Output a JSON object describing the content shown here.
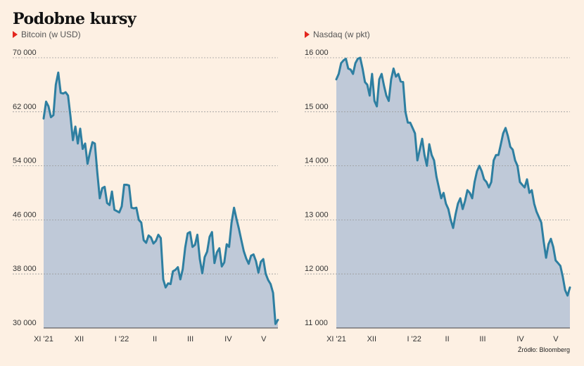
{
  "page": {
    "title": "Podobne kursy",
    "source": "Źródło: Bloomberg"
  },
  "colors": {
    "background": "#fdf0e3",
    "line": "#2e7fa1",
    "fill": "#bfc9d8",
    "marker": "#e3261e",
    "grid": "#9a9a9a"
  },
  "chart_data": [
    {
      "type": "area",
      "title": "Bitcoin (w USD)",
      "ylim": [
        30000,
        70000
      ],
      "yticks": [
        "70 000",
        "62 000",
        "54 000",
        "46 000",
        "38 000",
        "30 000"
      ],
      "ytick_values": [
        70000,
        62000,
        54000,
        46000,
        38000,
        30000
      ],
      "xticks": [
        "XI '21",
        "XII",
        "I '22",
        "II",
        "III",
        "IV",
        "V"
      ],
      "xtick_positions": [
        0,
        15,
        33,
        47,
        62,
        78,
        93
      ],
      "x_range": [
        0,
        99
      ],
      "grid": "horizontal dashed",
      "values": [
        61000,
        63500,
        62800,
        61200,
        61500,
        66000,
        67800,
        64800,
        64700,
        64900,
        64400,
        61300,
        57800,
        59800,
        57300,
        59500,
        56500,
        57300,
        54300,
        56000,
        57500,
        57300,
        53000,
        49200,
        50700,
        50900,
        48500,
        48200,
        50200,
        47500,
        47300,
        47100,
        48000,
        51200,
        51200,
        51100,
        47800,
        47700,
        47800,
        46000,
        45600,
        43000,
        42600,
        43700,
        43400,
        42500,
        42900,
        43800,
        43300,
        37200,
        36000,
        36600,
        36500,
        38400,
        38600,
        39000,
        37200,
        38700,
        41900,
        44000,
        44200,
        42000,
        42300,
        43800,
        40200,
        38100,
        40500,
        41300,
        43500,
        44200,
        39600,
        41200,
        41800,
        39100,
        39700,
        42400,
        42000,
        45600,
        47800,
        46200,
        44700,
        43000,
        41400,
        40300,
        39500,
        40700,
        40900,
        39900,
        38200,
        39800,
        40200,
        38000,
        37100,
        36500,
        35200,
        30600,
        31200
      ]
    },
    {
      "type": "area",
      "title": "Nasdaq (w pkt)",
      "ylim": [
        11000,
        16000
      ],
      "yticks": [
        "16 000",
        "15 000",
        "14 000",
        "13 000",
        "12 000",
        "11 000"
      ],
      "ytick_values": [
        16000,
        15000,
        14000,
        13000,
        12000,
        11000
      ],
      "xticks": [
        "XI '21",
        "XII",
        "I '22",
        "II",
        "III",
        "IV",
        "V"
      ],
      "xtick_positions": [
        0,
        15,
        33,
        47,
        62,
        78,
        93
      ],
      "x_range": [
        0,
        99
      ],
      "grid": "horizontal dashed",
      "values": [
        15600,
        15700,
        15900,
        15950,
        15980,
        15800,
        15780,
        15700,
        15900,
        15980,
        16000,
        15800,
        15550,
        15500,
        15300,
        15700,
        15200,
        15100,
        15600,
        15700,
        15480,
        15300,
        15200,
        15600,
        15800,
        15650,
        15700,
        15560,
        15550,
        15000,
        14800,
        14800,
        14700,
        14600,
        14100,
        14300,
        14500,
        14200,
        14000,
        14400,
        14200,
        14100,
        13800,
        13600,
        13400,
        13500,
        13300,
        13200,
        13000,
        12850,
        13100,
        13300,
        13400,
        13200,
        13350,
        13550,
        13500,
        13400,
        13700,
        13900,
        14000,
        13900,
        13750,
        13700,
        13600,
        13700,
        14100,
        14200,
        14200,
        14400,
        14600,
        14700,
        14550,
        14350,
        14300,
        14100,
        14000,
        13700,
        13650,
        13600,
        13750,
        13500,
        13550,
        13300,
        13150,
        13050,
        12950,
        12600,
        12300,
        12550,
        12650,
        12500,
        12250,
        12200,
        12150,
        11950,
        11700,
        11600,
        11750
      ]
    }
  ]
}
